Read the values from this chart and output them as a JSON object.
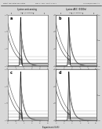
{
  "header_left": "Patent Application Publication",
  "header_mid": "May. 4, 2006  Sheet 2 of 14",
  "header_right": "US 2006/0094087 A1",
  "col_titles": [
    "Lysine anti-analog",
    "Lysine AEC (1000x)"
  ],
  "col_subtitles": [
    "OD, (arbitrary)",
    "OD, (arbitrary)"
  ],
  "panel_labels": [
    "a",
    "b",
    "c",
    "d"
  ],
  "xlabel": "Experiment (h/h)",
  "fig_bg": "#d8d8d8",
  "plot_bg": "#ffffff",
  "border_color": "#999999",
  "curve_colors": [
    "#222222",
    "#444444",
    "#666666",
    "#888888",
    "#aaaaaa"
  ],
  "xlim": [
    0,
    10
  ],
  "ylim": [
    0,
    3
  ],
  "xticks": [
    0,
    2,
    4,
    6,
    8,
    10
  ],
  "yticks_left": [
    0,
    1,
    2,
    3
  ],
  "yticks_right": [
    0,
    0.5,
    1.0
  ]
}
